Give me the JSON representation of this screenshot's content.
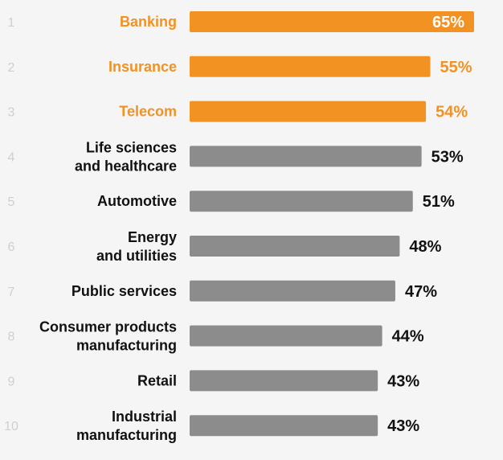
{
  "chart_data": {
    "type": "bar",
    "orientation": "horizontal",
    "value_suffix": "%",
    "categories": [
      "Banking",
      "Insurance",
      "Telecom",
      "Life sciences\nand healthcare",
      "Automotive",
      "Energy\nand utilities",
      "Public services",
      "Consumer products\nmanufacturing",
      "Retail",
      "Industrial\nmanufacturing"
    ],
    "ranks": [
      "1",
      "2",
      "3",
      "4",
      "5",
      "6",
      "7",
      "8",
      "9",
      "10"
    ],
    "values": [
      65,
      55,
      54,
      53,
      51,
      48,
      47,
      44,
      43,
      43
    ],
    "highlighted": [
      true,
      true,
      true,
      false,
      false,
      false,
      false,
      false,
      false,
      false
    ],
    "xlim": [
      0,
      65
    ],
    "grid": false,
    "legend": "none",
    "colors": {
      "highlight": "#f29222",
      "default": "#8c8c8c",
      "label": "#111111",
      "rank": "#cfcfcf",
      "background": "#f5f5f5"
    }
  }
}
